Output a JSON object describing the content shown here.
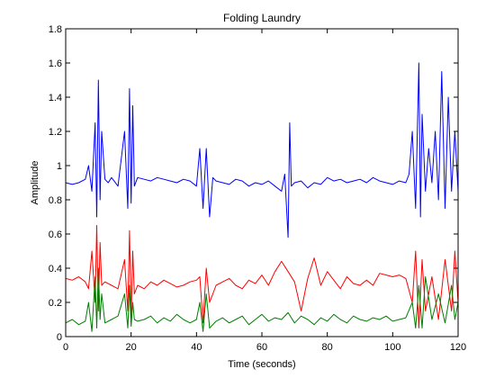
{
  "chart_data": {
    "type": "line",
    "title": "Folding Laundry",
    "xlabel": "Time (seconds)",
    "ylabel": "Amplitude",
    "xlim": [
      0,
      120
    ],
    "ylim": [
      0,
      1.8
    ],
    "xticks": [
      0,
      20,
      40,
      60,
      80,
      100,
      120
    ],
    "yticks": [
      0,
      0.2,
      0.4,
      0.6,
      0.8,
      1,
      1.2,
      1.4,
      1.6,
      1.8
    ],
    "xtick_labels": [
      "0",
      "20",
      "40",
      "60",
      "80",
      "100",
      "120"
    ],
    "ytick_labels": [
      "0",
      "0.2",
      "0.4",
      "0.6",
      "0.8",
      "1",
      "1.2",
      "1.4",
      "1.6",
      "1.8"
    ],
    "grid": false,
    "legend": "none",
    "series": [
      {
        "color": "#0000ff",
        "x": [
          0,
          2,
          4,
          6,
          7,
          8,
          9,
          9.5,
          10,
          10.5,
          11,
          12,
          13,
          14,
          16,
          18,
          19,
          19.5,
          20,
          20.5,
          21,
          22,
          24,
          26,
          28,
          30,
          32,
          34,
          36,
          38,
          40,
          41,
          42,
          43,
          44,
          45,
          46,
          48,
          50,
          52,
          54,
          56,
          58,
          60,
          62,
          64,
          66,
          67,
          68,
          68.5,
          69,
          70,
          72,
          74,
          76,
          78,
          80,
          82,
          84,
          86,
          88,
          90,
          92,
          94,
          96,
          98,
          100,
          102,
          104,
          105,
          106,
          107,
          108,
          108.5,
          109,
          110,
          111,
          112,
          113,
          114,
          115,
          116,
          117,
          118,
          119,
          120
        ],
        "y": [
          0.9,
          0.89,
          0.9,
          0.92,
          1.0,
          0.85,
          1.25,
          0.7,
          1.5,
          0.8,
          1.2,
          0.92,
          0.9,
          0.93,
          0.88,
          1.2,
          0.75,
          1.45,
          0.78,
          1.35,
          0.88,
          0.93,
          0.92,
          0.91,
          0.93,
          0.92,
          0.91,
          0.9,
          0.92,
          0.91,
          0.88,
          1.1,
          0.75,
          1.1,
          0.7,
          0.93,
          0.91,
          0.9,
          0.89,
          0.92,
          0.91,
          0.88,
          0.9,
          0.89,
          0.91,
          0.88,
          0.85,
          0.95,
          0.58,
          1.25,
          0.88,
          0.9,
          0.91,
          0.87,
          0.9,
          0.89,
          0.93,
          0.91,
          0.92,
          0.9,
          0.91,
          0.92,
          0.9,
          0.93,
          0.91,
          0.9,
          0.89,
          0.91,
          0.9,
          0.95,
          1.2,
          0.75,
          1.6,
          0.7,
          1.3,
          0.85,
          1.1,
          0.9,
          1.2,
          0.8,
          1.55,
          0.75,
          1.4,
          0.85,
          1.2,
          0.85
        ]
      },
      {
        "color": "#ff0000",
        "x": [
          0,
          2,
          4,
          6,
          7,
          8,
          9,
          9.5,
          10,
          10.5,
          11,
          12,
          14,
          16,
          18,
          19,
          19.5,
          20,
          20.5,
          21,
          22,
          24,
          26,
          28,
          30,
          32,
          34,
          36,
          38,
          40,
          41,
          42,
          43,
          44,
          46,
          48,
          50,
          52,
          54,
          56,
          58,
          60,
          62,
          64,
          66,
          68,
          70,
          72,
          74,
          76,
          78,
          80,
          82,
          84,
          86,
          88,
          90,
          92,
          94,
          96,
          98,
          100,
          102,
          104,
          106,
          107,
          108,
          109,
          110,
          112,
          114,
          116,
          118,
          119,
          120
        ],
        "y": [
          0.34,
          0.33,
          0.35,
          0.32,
          0.28,
          0.5,
          0.2,
          0.65,
          0.15,
          0.55,
          0.3,
          0.32,
          0.3,
          0.28,
          0.45,
          0.15,
          0.62,
          0.1,
          0.5,
          0.25,
          0.3,
          0.28,
          0.32,
          0.3,
          0.33,
          0.31,
          0.29,
          0.3,
          0.32,
          0.33,
          0.35,
          0.08,
          0.4,
          0.2,
          0.3,
          0.32,
          0.34,
          0.3,
          0.28,
          0.33,
          0.31,
          0.36,
          0.3,
          0.38,
          0.44,
          0.38,
          0.32,
          0.15,
          0.34,
          0.46,
          0.3,
          0.38,
          0.33,
          0.28,
          0.35,
          0.31,
          0.3,
          0.33,
          0.3,
          0.37,
          0.36,
          0.35,
          0.36,
          0.34,
          0.2,
          0.5,
          0.05,
          0.45,
          0.15,
          0.35,
          0.1,
          0.45,
          0.15,
          0.5,
          0.2
        ]
      },
      {
        "color": "#007f00",
        "x": [
          0,
          2,
          4,
          6,
          7,
          8,
          9,
          9.5,
          10,
          10.5,
          11,
          12,
          14,
          16,
          18,
          19,
          19.5,
          20,
          20.5,
          21,
          22,
          24,
          26,
          28,
          30,
          32,
          34,
          36,
          38,
          40,
          41,
          42,
          43,
          44,
          46,
          48,
          50,
          52,
          54,
          56,
          58,
          60,
          62,
          64,
          66,
          68,
          70,
          72,
          74,
          76,
          78,
          80,
          82,
          84,
          86,
          88,
          90,
          92,
          94,
          96,
          98,
          100,
          102,
          104,
          106,
          107,
          108,
          109,
          110,
          112,
          114,
          116,
          118,
          119,
          120
        ],
        "y": [
          0.08,
          0.1,
          0.07,
          0.09,
          0.2,
          0.03,
          0.35,
          0.05,
          0.4,
          0.1,
          0.25,
          0.08,
          0.1,
          0.12,
          0.25,
          0.05,
          0.3,
          0.06,
          0.2,
          0.1,
          0.09,
          0.1,
          0.12,
          0.08,
          0.11,
          0.09,
          0.13,
          0.1,
          0.08,
          0.1,
          0.2,
          0.03,
          0.25,
          0.05,
          0.09,
          0.11,
          0.08,
          0.1,
          0.12,
          0.07,
          0.1,
          0.13,
          0.09,
          0.11,
          0.1,
          0.14,
          0.08,
          0.12,
          0.1,
          0.07,
          0.11,
          0.09,
          0.13,
          0.1,
          0.08,
          0.12,
          0.1,
          0.09,
          0.11,
          0.1,
          0.12,
          0.09,
          0.1,
          0.11,
          0.2,
          0.05,
          0.3,
          0.05,
          0.35,
          0.1,
          0.25,
          0.08,
          0.3,
          0.1,
          0.2
        ]
      }
    ]
  }
}
